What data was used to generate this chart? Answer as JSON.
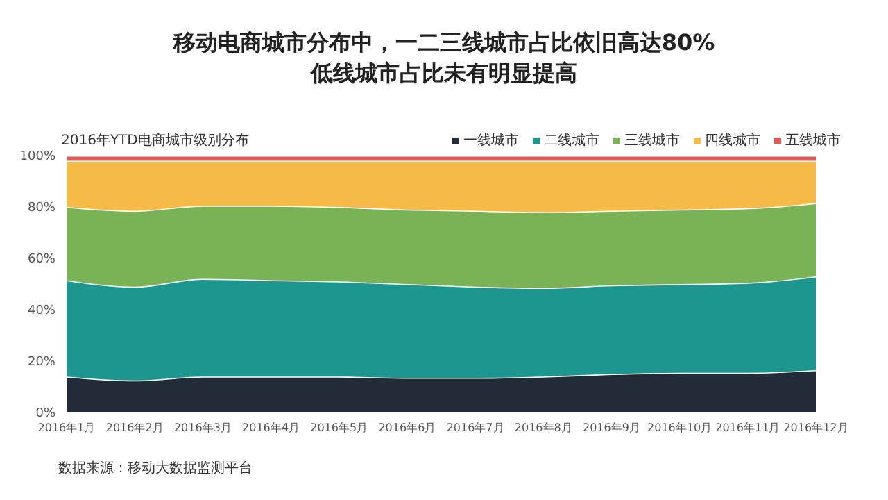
{
  "chart_data": {
    "type": "area",
    "title": "移动电商城市分布中，一二三线城市占比依旧高达80%\n低线城市占比未有明显提高",
    "subtitle": "2016年YTD电商城市级别分布",
    "categories": [
      "2016年1月",
      "2016年2月",
      "2016年3月",
      "2016年4月",
      "2016年5月",
      "2016年6月",
      "2016年7月",
      "2016年8月",
      "2016年9月",
      "2016年10月",
      "2016年11月",
      "2016年12月"
    ],
    "stacked": true,
    "ylim": [
      0,
      100
    ],
    "yticks": [
      {
        "value": 0,
        "label": "0%"
      },
      {
        "value": 20,
        "label": "20%"
      },
      {
        "value": 40,
        "label": "40%"
      },
      {
        "value": 60,
        "label": "60%"
      },
      {
        "value": 80,
        "label": "80%"
      },
      {
        "value": 100,
        "label": "100%"
      }
    ],
    "series": [
      {
        "name": "一线城市",
        "color": "#222b38",
        "values": [
          14,
          12.5,
          14,
          14,
          14,
          13.5,
          13.5,
          14,
          15,
          15.5,
          15.5,
          16.5
        ]
      },
      {
        "name": "二线城市",
        "color": "#1e9690",
        "values": [
          37.5,
          36.5,
          38,
          37.5,
          37,
          36.5,
          35.5,
          34.5,
          34.5,
          34.5,
          35,
          36.5
        ]
      },
      {
        "name": "三线城市",
        "color": "#7ab356",
        "values": [
          28.5,
          29.5,
          28.5,
          29,
          29,
          29,
          29.5,
          29.5,
          29,
          29,
          29,
          28.5
        ]
      },
      {
        "name": "四线城市",
        "color": "#f6bb47",
        "values": [
          18,
          19.5,
          17.5,
          17.5,
          18,
          19,
          19.5,
          20,
          19.5,
          19,
          18.5,
          16.5
        ]
      },
      {
        "name": "五线城市",
        "color": "#e05a5a",
        "values": [
          2,
          2,
          2,
          2,
          2,
          2,
          2,
          2,
          2,
          2,
          2,
          2
        ]
      }
    ],
    "grid": false,
    "legend": "top right",
    "marker": "none",
    "annotations": [
      "数据来源：移动大数据监测平台"
    ]
  }
}
